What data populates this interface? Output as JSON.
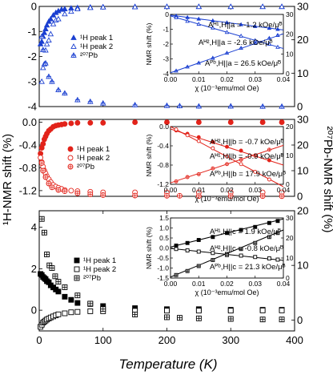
{
  "figure": {
    "ylabel_left": "¹H-NMR shift (%)",
    "ylabel_right": "²⁰⁷Pb-NMR shift (%)",
    "xlabel": "Temperature (K)"
  },
  "chart_data": [
    {
      "type": "scatter",
      "panel": "top",
      "color": "#1a3fd1",
      "x_range": [
        0,
        400
      ],
      "x_ticks": [
        0,
        100,
        200,
        300,
        400
      ],
      "y_left_range": [
        -4,
        0
      ],
      "y_left_ticks": [
        "0",
        "-1",
        "-2",
        "-3",
        "-4"
      ],
      "y_right_range": [
        0,
        30
      ],
      "y_right_ticks": [
        "0",
        "10",
        "20",
        "30"
      ],
      "legend": {
        "placement": "center",
        "entries": [
          "¹H peak 1",
          "¹H peak 2",
          "²⁰⁷Pb"
        ]
      },
      "series": [
        {
          "name": "¹H peak 1",
          "marker": "triangle-filled",
          "axis": "left",
          "x": [
            2,
            4,
            6,
            8,
            10,
            12,
            15,
            18,
            22,
            26,
            30,
            35,
            40,
            50,
            60,
            80,
            100,
            150,
            200,
            250,
            300,
            350,
            380
          ],
          "y": [
            -1.5,
            -1.4,
            -1.2,
            -1.05,
            -0.9,
            -0.75,
            -0.6,
            -0.5,
            -0.35,
            -0.25,
            -0.18,
            -0.12,
            -0.1,
            -0.07,
            -0.05,
            -0.03,
            -0.02,
            -0.01,
            -0.01,
            -0.01,
            -0.01,
            -0.01,
            -0.01
          ]
        },
        {
          "name": "¹H peak 2",
          "marker": "triangle-open",
          "axis": "left",
          "x": [
            4,
            6,
            8,
            10,
            12,
            15,
            18,
            22,
            26,
            30,
            40,
            50,
            60,
            80,
            100,
            150,
            200,
            250,
            300,
            350,
            380
          ],
          "y": [
            -3.0,
            -2.45,
            -2.3,
            -1.75,
            -1.5,
            -1.35,
            -1.1,
            -0.7,
            -0.55,
            -0.5,
            -0.3,
            -0.2,
            -0.1,
            -0.05,
            -0.03,
            -0.02,
            -0.01,
            -0.01,
            -0.01,
            -0.01,
            -0.01
          ]
        },
        {
          "name": "²⁰⁷Pb",
          "marker": "triangle-crossed",
          "axis": "right",
          "x": [
            4,
            6,
            10,
            15,
            20,
            30,
            40,
            60,
            80,
            100,
            150,
            200,
            220,
            250,
            300,
            350,
            380
          ],
          "y": [
            21,
            17,
            13,
            9,
            7.5,
            5,
            4,
            2,
            1.5,
            1,
            0.5,
            0.3,
            0.2,
            0.1,
            0.1,
            0.05,
            0.05
          ]
        }
      ],
      "inset": {
        "xlabel": "χ (10⁻³emu/mol Oe)",
        "ylabel": "NMR shift (%)",
        "x_range": [
          0,
          0.04
        ],
        "x_ticks": [
          "0.00",
          "0.01",
          "0.02",
          "0.03",
          "0.04"
        ],
        "y_left_range": [
          -4,
          0
        ],
        "y_left_ticks": [
          "0",
          "-1",
          "-2",
          "-3",
          "-4"
        ],
        "y_right_range": [
          0,
          30
        ],
        "y_right_ticks": [
          "0",
          "10",
          "20",
          "30"
        ],
        "annotations": [
          "Aᴴ¹,H||a = -1.2 kOe/μᴮ",
          "Aᴴ²,H||a = -2.6 kOe/μᴮ",
          "Aᴾᵇ,H||a = 26.5 kOe/μᴮ"
        ],
        "series": [
          {
            "name": "H1",
            "line": [
              [
                0,
                -0.05
              ],
              [
                0.04,
                -1.05
              ]
            ],
            "x": [
              0.002,
              0.006,
              0.01,
              0.015,
              0.02,
              0.025,
              0.03,
              0.035,
              0.038
            ],
            "y": [
              -0.1,
              -0.2,
              -0.3,
              -0.42,
              -0.55,
              -0.68,
              -0.8,
              -0.92,
              -1.0
            ]
          },
          {
            "name": "H2",
            "line": [
              [
                0,
                -0.1
              ],
              [
                0.04,
                -2.3
              ]
            ],
            "x": [
              0.002,
              0.006,
              0.01,
              0.015,
              0.02,
              0.025,
              0.03,
              0.035,
              0.038
            ],
            "y": [
              -0.2,
              -0.45,
              -0.65,
              -0.9,
              -1.2,
              -1.45,
              -1.75,
              -2.0,
              -2.2
            ]
          },
          {
            "name": "Pb",
            "line": [
              [
                0,
                0.5
              ],
              [
                0.04,
                20.2
              ]
            ],
            "x": [
              0.002,
              0.006,
              0.01,
              0.015,
              0.02,
              0.025,
              0.03,
              0.035,
              0.038
            ],
            "y": [
              1.5,
              3.5,
              5.5,
              8,
              10.5,
              13,
              15.5,
              18,
              19.5
            ]
          }
        ]
      }
    },
    {
      "type": "scatter",
      "panel": "middle",
      "color": "#e2231a",
      "x_range": [
        0,
        400
      ],
      "x_ticks": [
        0,
        100,
        200,
        300,
        400
      ],
      "y_left_range": [
        -1.3,
        0.05
      ],
      "y_left_ticks": [
        "0.0",
        "-0.4",
        "-0.8",
        "-1.2"
      ],
      "y_right_range": [
        0,
        30
      ],
      "y_right_ticks": [
        "0",
        "10",
        "20",
        "30"
      ],
      "legend": {
        "placement": "center",
        "entries": [
          "¹H peak 1",
          "¹H peak 2",
          "²⁰⁷Pb"
        ]
      },
      "series": [
        {
          "name": "¹H peak 1",
          "marker": "circle-filled",
          "axis": "left",
          "x": [
            2,
            4,
            6,
            8,
            10,
            12,
            15,
            18,
            22,
            26,
            30,
            35,
            40,
            50,
            60,
            80,
            100,
            150,
            200,
            250,
            300,
            350,
            380
          ],
          "y": [
            -0.55,
            -0.45,
            -0.38,
            -0.3,
            -0.25,
            -0.2,
            -0.15,
            -0.12,
            -0.08,
            -0.06,
            -0.05,
            -0.04,
            -0.03,
            -0.02,
            -0.01,
            -0.01,
            -0.01,
            0,
            0,
            0,
            0,
            0,
            0
          ]
        },
        {
          "name": "¹H peak 2",
          "marker": "circle-open",
          "axis": "left",
          "x": [
            2,
            4,
            6,
            8,
            10,
            12,
            15,
            18,
            22,
            26,
            30,
            35,
            40,
            50,
            60,
            80,
            100,
            150,
            200,
            250,
            300,
            350,
            380
          ],
          "y": [
            -0.62,
            -0.7,
            -0.78,
            -0.85,
            -0.9,
            -0.95,
            -1.0,
            -1.05,
            -1.1,
            -1.13,
            -1.15,
            -1.17,
            -1.19,
            -1.2,
            -1.21,
            -1.22,
            -1.23,
            -1.23,
            -1.23,
            -1.23,
            -1.23,
            -1.23,
            -1.23
          ]
        },
        {
          "name": "²⁰⁷Pb",
          "marker": "circle-crossed",
          "axis": "right",
          "x": [
            4,
            6,
            10,
            15,
            20,
            30,
            40,
            60,
            80,
            100,
            150,
            200,
            220,
            250,
            300,
            350,
            380
          ],
          "y": [
            13,
            10,
            7.5,
            5,
            3.5,
            2.5,
            2,
            1.2,
            0.8,
            0.5,
            0.3,
            0.2,
            0.2,
            0.1,
            0.1,
            0.1,
            0.05
          ]
        }
      ],
      "inset": {
        "xlabel": "χ (10⁻³emu/mol Oe)",
        "ylabel": "NMR shift (%)",
        "x_range": [
          0,
          0.04
        ],
        "x_ticks": [
          "0.00",
          "0.01",
          "0.02",
          "0.03",
          "0.04"
        ],
        "y_left_range": [
          -1.2,
          0
        ],
        "y_left_ticks": [
          "0.0",
          "-0.4",
          "-0.8",
          "-1.2"
        ],
        "y_right_range": [
          0,
          20
        ],
        "y_right_ticks": [
          "0",
          "10",
          "20"
        ],
        "annotations": [
          "Aᴴ²,H||b = -0.7 kOe/μᴮ",
          "Aᴴ¹,H||b = -0.9 kOe/μᴮ",
          "Aᴾᵇ,H||b = 17.9 kOe/μᴮ"
        ],
        "series": [
          {
            "name": "H2",
            "line": [
              [
                0,
                -0.05
              ],
              [
                0.04,
                -0.8
              ]
            ],
            "x": [
              0.002,
              0.006,
              0.01,
              0.015,
              0.02,
              0.025,
              0.03,
              0.035
            ],
            "y": [
              -0.08,
              -0.15,
              -0.22,
              -0.32,
              -0.42,
              -0.5,
              -0.6,
              -0.7
            ]
          },
          {
            "name": "H1",
            "line": [
              [
                0,
                0
              ],
              [
                0.04,
                -1.25
              ]
            ],
            "x": [
              0.002,
              0.006,
              0.01,
              0.015,
              0.02,
              0.025,
              0.03,
              0.035
            ],
            "y": [
              -0.06,
              -0.18,
              -0.3,
              -0.45,
              -0.62,
              -0.78,
              -0.94,
              -1.1
            ]
          },
          {
            "name": "Pb",
            "line": [
              [
                0,
                0.5
              ],
              [
                0.04,
                13.5
              ]
            ],
            "x": [
              0.002,
              0.006,
              0.01,
              0.015,
              0.02,
              0.025,
              0.03,
              0.035
            ],
            "y": [
              1,
              2.5,
              3.5,
              5.5,
              7,
              8.5,
              10,
              12
            ]
          }
        ]
      }
    },
    {
      "type": "scatter",
      "panel": "bottom",
      "color": "#000000",
      "x_range": [
        0,
        400
      ],
      "x_ticks": [
        "0",
        "100",
        "200",
        "300",
        "400"
      ],
      "y_left_range": [
        -1,
        4.8
      ],
      "y_left_ticks": [
        "0",
        "2",
        "4"
      ],
      "y_right_range": [
        -2,
        20
      ],
      "y_right_ticks": [
        "0",
        "10",
        "20"
      ],
      "legend": {
        "placement": "center",
        "entries": [
          "¹H peak 1",
          "¹H peak 2",
          "²⁰⁷Pb"
        ]
      },
      "series": [
        {
          "name": "¹H peak 1",
          "marker": "square-filled",
          "axis": "left",
          "x": [
            2,
            4,
            6,
            8,
            10,
            12,
            15,
            18,
            22,
            26,
            30,
            40,
            50,
            60,
            80,
            100,
            150,
            200,
            250,
            300,
            350,
            380
          ],
          "y": [
            1.75,
            1.7,
            1.6,
            1.55,
            1.5,
            1.4,
            1.35,
            1.2,
            1.1,
            1.0,
            0.9,
            0.65,
            0.5,
            0.35,
            0.3,
            0.2,
            0.1,
            0.05,
            0.05,
            0.02,
            0.02,
            0.02
          ]
        },
        {
          "name": "¹H peak 2",
          "marker": "square-open",
          "axis": "left",
          "x": [
            2,
            4,
            6,
            8,
            10,
            12,
            15,
            18,
            22,
            26,
            30,
            40,
            50,
            60,
            80,
            100,
            150,
            200,
            250,
            300,
            350,
            380
          ],
          "y": [
            -0.8,
            -0.7,
            -0.6,
            -0.55,
            -0.5,
            -0.45,
            -0.4,
            -0.35,
            -0.3,
            -0.25,
            -0.2,
            -0.15,
            -0.1,
            -0.08,
            -0.05,
            -0.05,
            -0.03,
            -0.02,
            -0.02,
            -0.02,
            -0.01,
            -0.01
          ]
        },
        {
          "name": "²⁰⁷Pb",
          "marker": "square-crossed",
          "axis": "right",
          "x": [
            4,
            8,
            12,
            16,
            20,
            25,
            30,
            40,
            60,
            80,
            100,
            150,
            200,
            220,
            250,
            300,
            350,
            380
          ],
          "y": [
            18.5,
            16,
            12,
            10,
            9.5,
            8,
            7,
            6,
            4.5,
            3,
            2,
            1,
            0.5,
            0.4,
            0.3,
            0.2,
            0.1,
            0.1
          ]
        }
      ],
      "inset": {
        "xlabel": "χ (10⁻³emu/mol Oe)",
        "ylabel": "NMR shift (%)",
        "x_range": [
          0,
          0.04
        ],
        "x_ticks": [
          "0.00",
          "0.01",
          "0.02",
          "0.03",
          "0.04"
        ],
        "y_left_range": [
          -1.5,
          1.5
        ],
        "y_left_ticks": [
          "1.5",
          "1.0",
          "0.5",
          "0.0",
          "-0.5",
          "-1.0",
          "-1.5"
        ],
        "y_right_range": [
          0,
          30
        ],
        "y_right_ticks": [
          "0",
          "10",
          "20",
          "30"
        ],
        "annotations": [
          "Aᴴ¹,H||c = 1.9 kOe/μᴮ",
          "Aᴴ²,H||c = -0.8 kOe/μᴮ",
          "Aᴾᵇ,H||c = 21.3 kOe/μᴮ"
        ],
        "series": [
          {
            "name": "H1",
            "line": [
              [
                0,
                0.05
              ],
              [
                0.04,
                1.45
              ]
            ],
            "x": [
              0.002,
              0.006,
              0.01,
              0.015,
              0.02,
              0.025,
              0.03,
              0.035,
              0.038
            ],
            "y": [
              0.12,
              0.25,
              0.4,
              0.55,
              0.75,
              0.9,
              1.05,
              1.25,
              1.35
            ]
          },
          {
            "name": "H2",
            "line": [
              [
                0,
                -0.02
              ],
              [
                0.04,
                -0.62
              ]
            ],
            "x": [
              0.002,
              0.006,
              0.01,
              0.015,
              0.02,
              0.025,
              0.03,
              0.035,
              0.038
            ],
            "y": [
              -0.05,
              -0.12,
              -0.18,
              -0.25,
              -0.3,
              -0.38,
              -0.45,
              -0.52,
              -0.58
            ]
          },
          {
            "name": "Pb",
            "line": [
              [
                0,
                0.5
              ],
              [
                0.04,
                24
              ]
            ],
            "x": [
              0.002,
              0.006,
              0.01,
              0.015,
              0.02,
              0.025,
              0.03,
              0.035,
              0.038
            ],
            "y": [
              1.5,
              3.5,
              6,
              9,
              11.5,
              14.5,
              17.5,
              20.5,
              22.5
            ]
          }
        ]
      }
    }
  ]
}
